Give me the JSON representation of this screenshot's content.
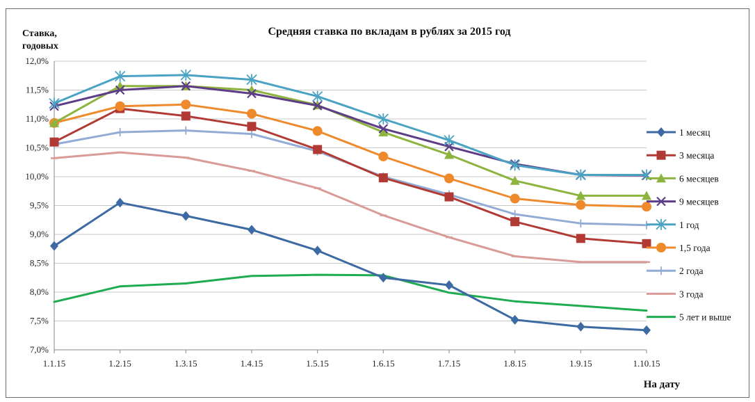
{
  "chart_data": {
    "type": "line",
    "title": "Средняя ставка по вкладам в рублях за 2015 год",
    "ylabel_line1": "Ставка,",
    "ylabel_line2": "годовых",
    "xlabel": "На дату",
    "categories": [
      "1.1.15",
      "1.2.15",
      "1.3.15",
      "1.4.15",
      "1.5.15",
      "1.6.15",
      "1.7.15",
      "1.8.15",
      "1.9.15",
      "1.10.15"
    ],
    "yticks": [
      "7,0%",
      "7,5%",
      "8,0%",
      "8,5%",
      "9,0%",
      "9,5%",
      "10,0%",
      "10,5%",
      "11,0%",
      "11,5%",
      "12,0%"
    ],
    "ylim": [
      7.0,
      12.0
    ],
    "grid": true,
    "legend_position": "right",
    "series": [
      {
        "name": "1 месяц",
        "color": "#3d6aa3",
        "marker": "diamond",
        "values": [
          8.8,
          9.55,
          9.32,
          9.08,
          8.72,
          8.25,
          8.12,
          7.52,
          7.4,
          7.34
        ]
      },
      {
        "name": "3 месяца",
        "color": "#b23a34",
        "marker": "square",
        "values": [
          10.6,
          11.18,
          11.05,
          10.87,
          10.47,
          9.98,
          9.65,
          9.22,
          8.93,
          8.84
        ]
      },
      {
        "name": "6 месяцев",
        "color": "#8db43e",
        "marker": "triangle",
        "values": [
          10.93,
          11.57,
          11.57,
          11.5,
          11.24,
          10.77,
          10.38,
          9.93,
          9.67,
          9.67
        ]
      },
      {
        "name": "9 месяцев",
        "color": "#5e3d87",
        "marker": "x",
        "values": [
          11.22,
          11.5,
          11.57,
          11.44,
          11.23,
          10.83,
          10.52,
          10.22,
          10.03,
          10.02
        ]
      },
      {
        "name": "1 год",
        "color": "#4aa3c3",
        "marker": "star",
        "values": [
          11.27,
          11.74,
          11.76,
          11.68,
          11.39,
          11.0,
          10.63,
          10.2,
          10.03,
          10.03
        ]
      },
      {
        "name": "1,5 года",
        "color": "#ef8a2c",
        "marker": "circle",
        "values": [
          10.93,
          11.22,
          11.25,
          11.09,
          10.79,
          10.35,
          9.97,
          9.62,
          9.51,
          9.48
        ]
      },
      {
        "name": "2 года",
        "color": "#93acd6",
        "marker": "plus",
        "values": [
          10.56,
          10.77,
          10.8,
          10.74,
          10.44,
          10.0,
          9.69,
          9.35,
          9.19,
          9.16
        ]
      },
      {
        "name": "3 года",
        "color": "#d99b97",
        "marker": "dash",
        "values": [
          10.32,
          10.42,
          10.33,
          10.1,
          9.8,
          9.33,
          8.95,
          8.62,
          8.52,
          8.52
        ]
      },
      {
        "name": "5 лет и выше",
        "color": "#1fab4f",
        "marker": "none",
        "values": [
          7.83,
          8.1,
          8.15,
          8.28,
          8.3,
          8.29,
          7.99,
          7.84,
          7.76,
          7.68
        ]
      }
    ]
  }
}
